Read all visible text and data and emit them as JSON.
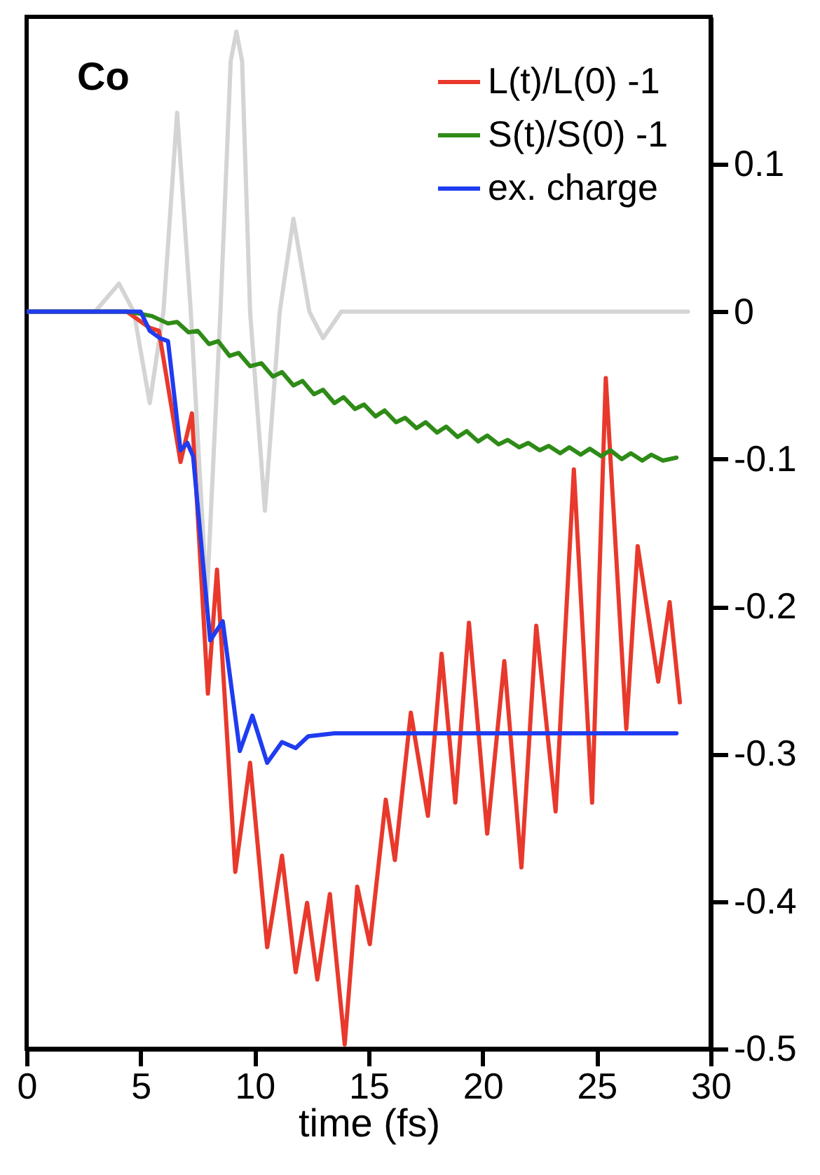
{
  "chart_data": {
    "type": "line",
    "xlabel": "time (fs)",
    "xlim": [
      0,
      30
    ],
    "xticks": [
      0,
      5,
      10,
      15,
      20,
      25,
      30
    ],
    "ylim": [
      -0.5,
      0.2
    ],
    "yticks": [
      -0.5,
      -0.4,
      -0.3,
      -0.2,
      -0.1,
      0,
      0.1
    ],
    "grid": false,
    "legend": "top right",
    "marker": "none",
    "line_style": "solid",
    "annotations": [
      "Co"
    ],
    "series": [
      {
        "color": "#d4d4d4",
        "x": [
          0,
          3.0,
          4.05,
          4.7,
          5.4,
          6.0,
          6.6,
          7.2,
          7.9,
          8.5,
          8.95,
          9.2,
          9.45,
          9.8,
          10.45,
          11.1,
          11.7,
          12.4,
          13.0,
          13.8,
          15,
          29
        ],
        "values": [
          0,
          0,
          0.019,
          0.0,
          -0.062,
          0.0,
          0.135,
          0.0,
          -0.195,
          0.0,
          0.17,
          0.19,
          0.17,
          0.0,
          -0.135,
          0.0,
          0.063,
          0.0,
          -0.018,
          0.0,
          0,
          0
        ]
      },
      {
        "name": "L(t)/L(0) -1",
        "color": "#e8392c",
        "x": [
          0,
          4.4,
          5.4,
          5.8,
          6.75,
          7.25,
          7.95,
          8.35,
          9.15,
          9.8,
          10.55,
          11.2,
          11.8,
          12.3,
          12.75,
          13.3,
          13.95,
          14.5,
          15.05,
          15.75,
          16.15,
          16.85,
          17.6,
          18.2,
          18.8,
          19.4,
          20.2,
          20.95,
          21.7,
          22.35,
          23.2,
          24.0,
          24.8,
          25.4,
          26.3,
          26.8,
          27.7,
          28.2,
          28.65
        ],
        "values": [
          0,
          0,
          -0.011,
          -0.013,
          -0.102,
          -0.069,
          -0.259,
          -0.175,
          -0.38,
          -0.306,
          -0.431,
          -0.369,
          -0.448,
          -0.401,
          -0.453,
          -0.395,
          -0.497,
          -0.39,
          -0.429,
          -0.331,
          -0.372,
          -0.272,
          -0.342,
          -0.232,
          -0.333,
          -0.211,
          -0.354,
          -0.237,
          -0.377,
          -0.213,
          -0.339,
          -0.107,
          -0.333,
          -0.045,
          -0.283,
          -0.159,
          -0.251,
          -0.197,
          -0.265
        ]
      },
      {
        "name": "S(t)/S(0) -1",
        "color": "#2e8b17",
        "x": [
          0,
          4.5,
          5.5,
          6.2,
          6.6,
          7.1,
          7.5,
          8.0,
          8.4,
          8.9,
          9.3,
          9.8,
          10.3,
          10.8,
          11.2,
          11.7,
          12.1,
          12.6,
          13.0,
          13.5,
          13.9,
          14.4,
          14.8,
          15.3,
          15.7,
          16.2,
          16.6,
          17.1,
          17.5,
          18.0,
          18.4,
          18.9,
          19.3,
          19.8,
          20.2,
          20.7,
          21.1,
          21.6,
          22.0,
          22.5,
          22.9,
          23.4,
          23.8,
          24.3,
          24.7,
          25.2,
          25.6,
          26.1,
          26.5,
          27.0,
          27.4,
          27.9,
          28.5
        ],
        "values": [
          0,
          0,
          -0.003,
          -0.008,
          -0.007,
          -0.014,
          -0.013,
          -0.022,
          -0.02,
          -0.03,
          -0.028,
          -0.037,
          -0.035,
          -0.044,
          -0.041,
          -0.05,
          -0.047,
          -0.056,
          -0.053,
          -0.062,
          -0.058,
          -0.066,
          -0.063,
          -0.071,
          -0.067,
          -0.075,
          -0.072,
          -0.079,
          -0.075,
          -0.082,
          -0.078,
          -0.085,
          -0.081,
          -0.088,
          -0.084,
          -0.09,
          -0.087,
          -0.092,
          -0.089,
          -0.094,
          -0.091,
          -0.096,
          -0.092,
          -0.097,
          -0.093,
          -0.098,
          -0.094,
          -0.1,
          -0.096,
          -0.101,
          -0.097,
          -0.101,
          -0.099
        ]
      },
      {
        "name": "ex. charge",
        "color": "#1f3cf0",
        "x": [
          0,
          5.0,
          5.4,
          5.85,
          6.2,
          6.75,
          7.05,
          7.3,
          8.05,
          8.6,
          9.35,
          9.9,
          10.55,
          11.2,
          11.8,
          12.35,
          13.5,
          28.5
        ],
        "values": [
          0,
          0,
          -0.013,
          -0.018,
          -0.02,
          -0.094,
          -0.089,
          -0.098,
          -0.223,
          -0.21,
          -0.298,
          -0.274,
          -0.306,
          -0.292,
          -0.296,
          -0.288,
          -0.286,
          -0.286
        ]
      }
    ]
  }
}
